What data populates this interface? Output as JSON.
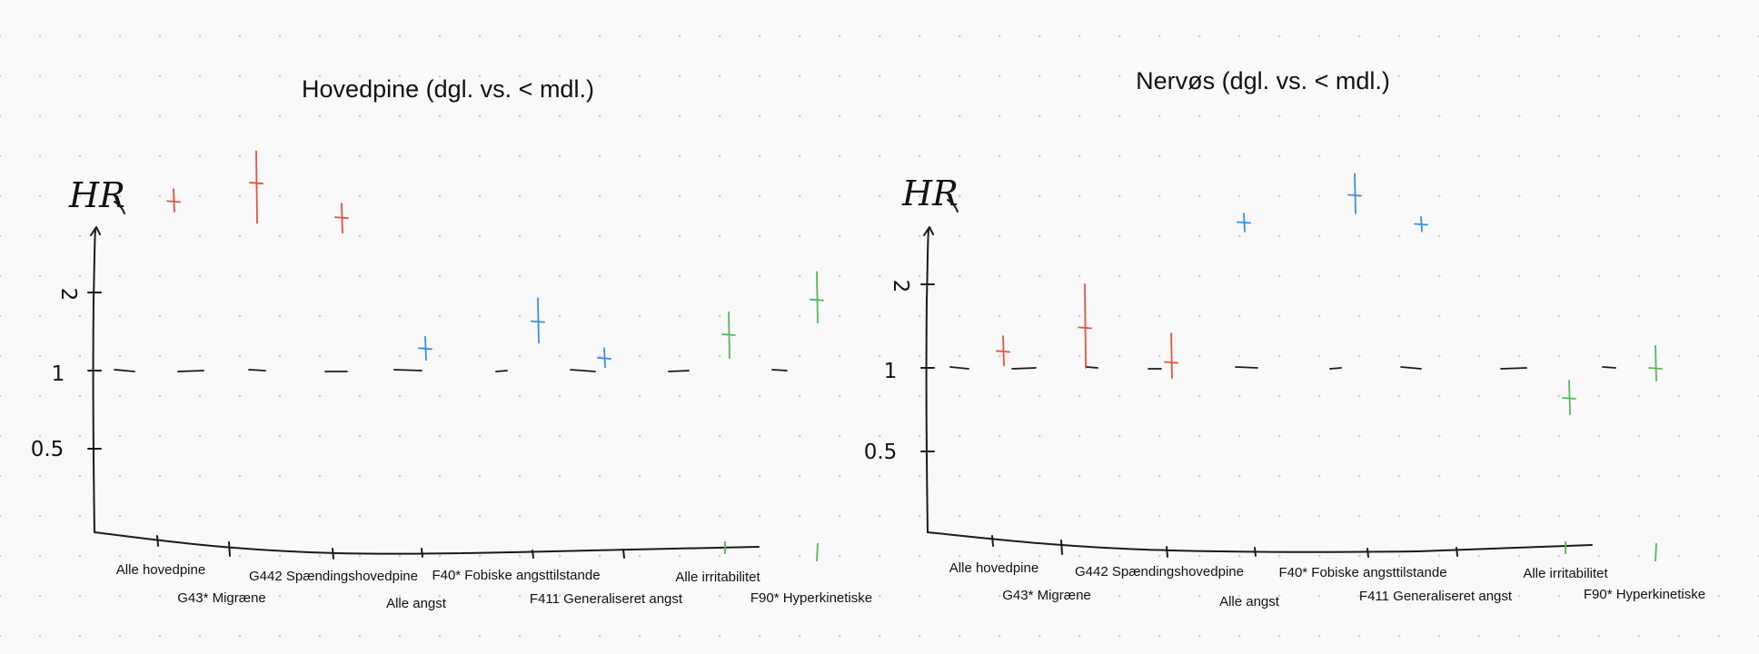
{
  "chart_data": [
    {
      "type": "scatter",
      "subtype": "forest-plot",
      "title": "Hovedpine (dgl. vs. < mdl.)",
      "ylabel": "HR",
      "yticks": [
        "0.5",
        "1",
        "2"
      ],
      "reference_line": 1,
      "grid": false,
      "categories": [
        "Alle hovedpine",
        "G43* Migræne",
        "G442 Spændingshovedpine",
        "Alle angst",
        "F40* Fobiske angsttilstande",
        "F411 Generaliseret angst",
        "Alle irritabilitet",
        "F90* Hyperkinetiske"
      ],
      "series": [
        {
          "color": "#e5533d",
          "points": [
            {
              "category": "Alle hovedpine",
              "hr": 4.5,
              "lo": 4.1,
              "hi": 5.0
            },
            {
              "category": "G43* Migræne",
              "hr": 5.3,
              "lo": 3.7,
              "hi": 7.0
            },
            {
              "category": "G442 Spændingshovedpine",
              "hr": 3.9,
              "lo": 3.4,
              "hi": 4.4
            }
          ]
        },
        {
          "color": "#3a8ee6",
          "points": [
            {
              "category": "Alle angst",
              "hr": 1.22,
              "lo": 1.1,
              "hi": 1.35
            },
            {
              "category": "F40* Fobiske angsttilstande",
              "hr": 1.55,
              "lo": 1.28,
              "hi": 1.9
            },
            {
              "category": "F411 Generaliseret angst",
              "hr": 1.12,
              "lo": 1.03,
              "hi": 1.22
            }
          ]
        },
        {
          "color": "#57b85a",
          "points": [
            {
              "category": "Alle irritabilitet",
              "hr": 1.38,
              "lo": 1.12,
              "hi": 1.68
            },
            {
              "category": "F90* Hyperkinetiske",
              "hr": 1.88,
              "lo": 1.53,
              "hi": 2.4
            }
          ]
        }
      ]
    },
    {
      "type": "scatter",
      "subtype": "forest-plot",
      "title": "Nervøs (dgl. vs. < mdl.)",
      "ylabel": "HR",
      "yticks": [
        "0.5",
        "1",
        "2"
      ],
      "reference_line": 1,
      "grid": false,
      "categories": [
        "Alle hovedpine",
        "G43* Migræne",
        "G442 Spændingshovedpine",
        "Alle angst",
        "F40* Fobiske angsttilstande",
        "F411 Generaliseret angst",
        "Alle irritabilitet",
        "F90* Hyperkinetiske"
      ],
      "series": [
        {
          "color": "#e5533d",
          "points": [
            {
              "category": "Alle hovedpine",
              "hr": 1.15,
              "lo": 1.02,
              "hi": 1.3
            },
            {
              "category": "G43* Migræne",
              "hr": 1.4,
              "lo": 1.0,
              "hi": 2.0
            },
            {
              "category": "G442 Spændingshovedpine",
              "hr": 1.05,
              "lo": 0.92,
              "hi": 1.33
            }
          ]
        },
        {
          "color": "#3a8ee6",
          "points": [
            {
              "category": "Alle angst",
              "hr": 3.35,
              "lo": 3.1,
              "hi": 3.6
            },
            {
              "category": "F40* Fobiske angsttilstande",
              "hr": 4.2,
              "lo": 3.6,
              "hi": 5.0
            },
            {
              "category": "F411 Generaliseret angst",
              "hr": 3.3,
              "lo": 3.1,
              "hi": 3.5
            }
          ]
        },
        {
          "color": "#57b85a",
          "points": [
            {
              "category": "Alle irritabilitet",
              "hr": 0.78,
              "lo": 0.68,
              "hi": 0.9
            },
            {
              "category": "F90* Hyperkinetiske",
              "hr": 1.0,
              "lo": 0.9,
              "hi": 1.2
            }
          ]
        }
      ]
    }
  ]
}
